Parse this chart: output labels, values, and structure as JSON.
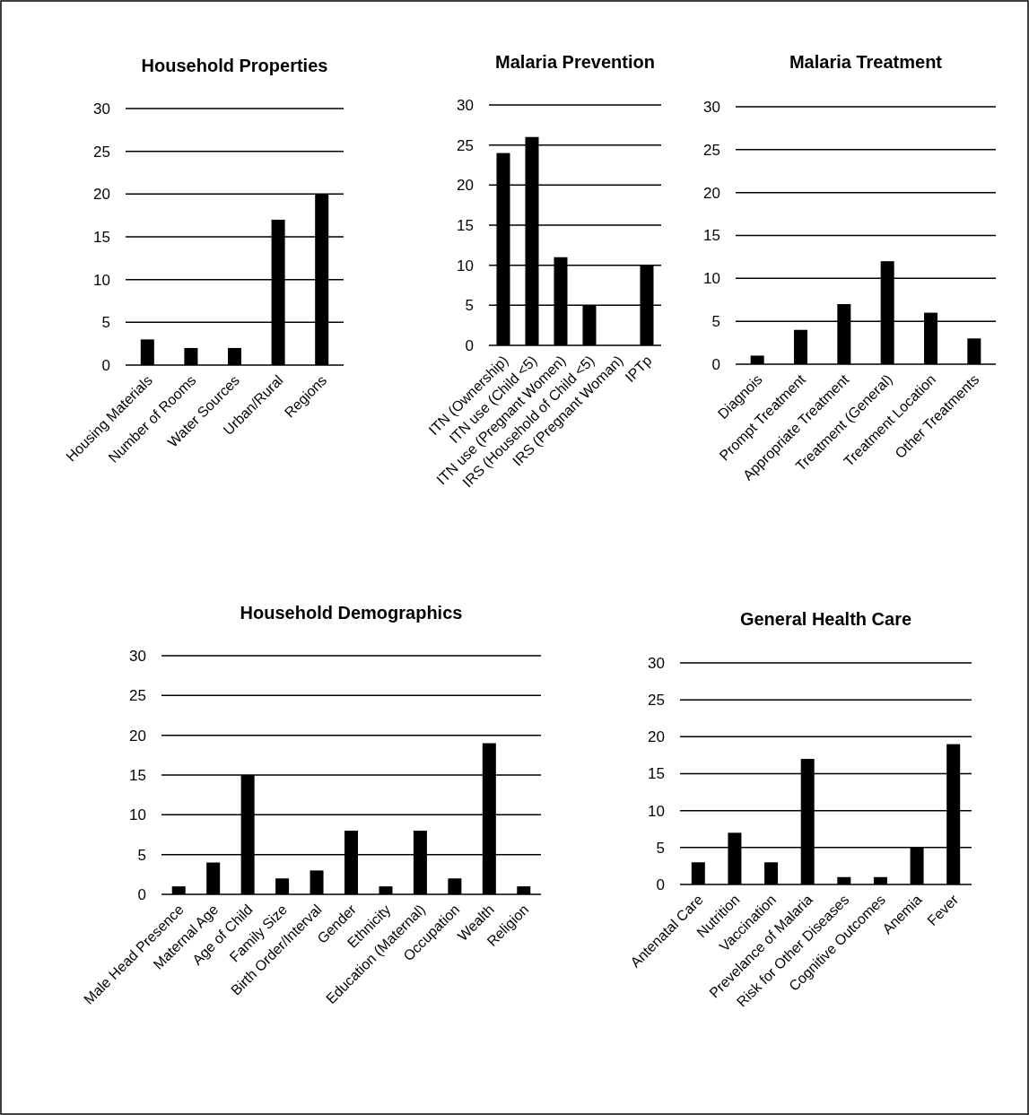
{
  "chart_data": [
    {
      "type": "bar",
      "title": "Household Properties",
      "categories": [
        "Housing Materials",
        "Number of Rooms",
        "Water Sources",
        "Urban/Rural",
        "Regions"
      ],
      "values": [
        3,
        2,
        2,
        17,
        20
      ],
      "color": "#000000",
      "ylim": [
        0,
        30
      ],
      "yticks": [
        0,
        5,
        10,
        15,
        20,
        25,
        30
      ],
      "grid": "y"
    },
    {
      "type": "bar",
      "title": "Malaria Prevention",
      "categories": [
        "ITN (Ownership)",
        "ITN use (Child <5)",
        "ITN use (Pregnant Women)",
        "IRS (Household of Child <5)",
        "IRS (Pregnant Woman)",
        "IPTp"
      ],
      "values": [
        24,
        26,
        11,
        5,
        0,
        10
      ],
      "color": "#000000",
      "ylim": [
        0,
        30
      ],
      "yticks": [
        0,
        5,
        10,
        15,
        20,
        25,
        30
      ],
      "grid": "y"
    },
    {
      "type": "bar",
      "title": "Malaria Treatment",
      "categories": [
        "Diagnois",
        "Prompt Treatment",
        "Appropriate Treatment",
        "Treatment (General)",
        "Treatment Location",
        "Other Treatments"
      ],
      "values": [
        1,
        4,
        7,
        12,
        6,
        3
      ],
      "color": "#000000",
      "ylim": [
        0,
        30
      ],
      "yticks": [
        0,
        5,
        10,
        15,
        20,
        25,
        30
      ],
      "grid": "y"
    },
    {
      "type": "bar",
      "title": "Household Demographics",
      "categories": [
        "Male Head Presence",
        "Maternal Age",
        "Age of Child",
        "Family Size",
        "Birth Order/Interval",
        "Gender",
        "Ethnicity",
        "Education (Maternal)",
        "Occupation",
        "Wealth",
        "Religion"
      ],
      "values": [
        1,
        4,
        15,
        2,
        3,
        8,
        1,
        8,
        2,
        19,
        1
      ],
      "color": "#000000",
      "ylim": [
        0,
        30
      ],
      "yticks": [
        0,
        5,
        10,
        15,
        20,
        25,
        30
      ],
      "grid": "y"
    },
    {
      "type": "bar",
      "title": "General Health Care",
      "categories": [
        "Antenatal Care",
        "Nutrition",
        "Vaccination",
        "Prevelance of Malaria",
        "Risk for Other Diseases",
        "Cognitive Outcomes",
        "Anemia",
        "Fever"
      ],
      "values": [
        3,
        7,
        3,
        17,
        1,
        1,
        5,
        19
      ],
      "color": "#000000",
      "ylim": [
        0,
        30
      ],
      "yticks": [
        0,
        5,
        10,
        15,
        20,
        25,
        30
      ],
      "grid": "y"
    }
  ]
}
